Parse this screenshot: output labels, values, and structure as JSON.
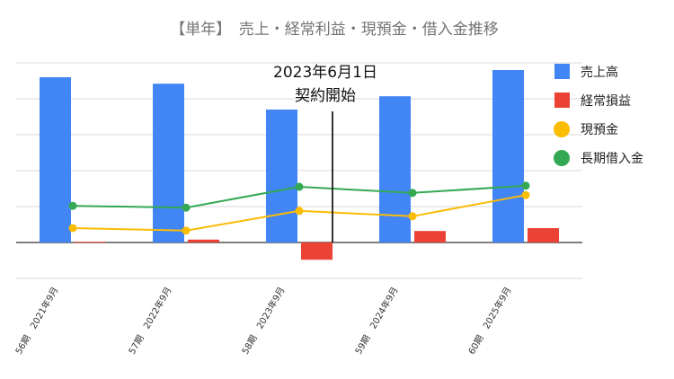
{
  "chart_data": {
    "type": "bar",
    "title": "【単年】　売上・経常利益・現預金・借入金推移",
    "categories": [
      "56期　2021年9月",
      "57期　2022年9月",
      "58期　2023年9月",
      "59期　2024年9月",
      "60期　2025年9月"
    ],
    "series": [
      {
        "name": "売上高",
        "type": "bar",
        "color": "#4285F4",
        "values": [
          460,
          442,
          370,
          407,
          480
        ]
      },
      {
        "name": "経常損益",
        "type": "bar",
        "color": "#EA4335",
        "values": [
          2,
          8,
          -48,
          32,
          40
        ]
      },
      {
        "name": "現預金",
        "type": "line",
        "color": "#FBBC04",
        "values": [
          40,
          33,
          88,
          73,
          132
        ]
      },
      {
        "name": "長期借入金",
        "type": "line",
        "color": "#34A853",
        "values": [
          102,
          97,
          155,
          138,
          158
        ]
      }
    ],
    "ylim": [
      -100,
      500
    ],
    "grid": true,
    "legend_position": "right",
    "annotation": {
      "line1": "2023年6月1日",
      "line2": "契約開始"
    }
  }
}
